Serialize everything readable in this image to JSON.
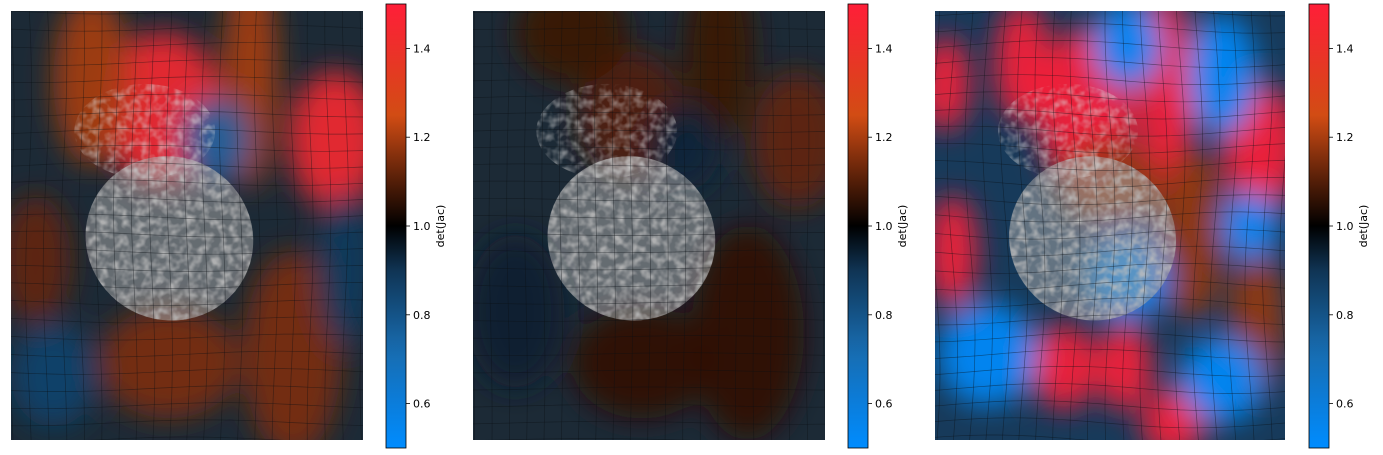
{
  "chart_data": [
    {
      "type": "heatmap",
      "title": "",
      "colorbar": {
        "label": "det(Jac)",
        "range": [
          0.5,
          1.5
        ],
        "ticks": [
          0.6,
          0.8,
          1.0,
          1.2,
          1.4
        ],
        "tick_labels": [
          "0.6",
          "0.8",
          "1.0",
          "1.2",
          "1.4"
        ]
      },
      "deformation": "moderate",
      "blobs": [
        {
          "x": 0.43,
          "y": 0.23,
          "rx": 0.17,
          "ry": 0.18,
          "value": 1.45
        },
        {
          "x": 0.92,
          "y": 0.3,
          "rx": 0.13,
          "ry": 0.16,
          "value": 1.45
        },
        {
          "x": 0.23,
          "y": 0.16,
          "rx": 0.11,
          "ry": 0.2,
          "value": 1.2
        },
        {
          "x": 0.68,
          "y": 0.15,
          "rx": 0.08,
          "ry": 0.26,
          "value": 1.2
        },
        {
          "x": 0.58,
          "y": 0.3,
          "rx": 0.1,
          "ry": 0.1,
          "value": 0.75
        },
        {
          "x": 0.8,
          "y": 0.8,
          "rx": 0.14,
          "ry": 0.24,
          "value": 1.15
        },
        {
          "x": 0.45,
          "y": 0.82,
          "rx": 0.2,
          "ry": 0.13,
          "value": 1.15
        },
        {
          "x": 0.07,
          "y": 0.58,
          "rx": 0.1,
          "ry": 0.15,
          "value": 1.12
        },
        {
          "x": 0.12,
          "y": 0.85,
          "rx": 0.12,
          "ry": 0.12,
          "value": 0.85
        },
        {
          "x": 0.95,
          "y": 0.6,
          "rx": 0.08,
          "ry": 0.18,
          "value": 0.88
        }
      ]
    },
    {
      "type": "heatmap",
      "title": "",
      "colorbar": {
        "label": "det(Jac)",
        "range": [
          0.5,
          1.5
        ],
        "ticks": [
          0.6,
          0.8,
          1.0,
          1.2,
          1.4
        ],
        "tick_labels": [
          "0.6",
          "0.8",
          "1.0",
          "1.2",
          "1.4"
        ]
      },
      "deformation": "weak",
      "blobs": [
        {
          "x": 0.45,
          "y": 0.24,
          "rx": 0.15,
          "ry": 0.15,
          "value": 1.1
        },
        {
          "x": 0.92,
          "y": 0.3,
          "rx": 0.13,
          "ry": 0.16,
          "value": 1.12
        },
        {
          "x": 0.28,
          "y": 0.05,
          "rx": 0.16,
          "ry": 0.12,
          "value": 1.07
        },
        {
          "x": 0.7,
          "y": 0.1,
          "rx": 0.1,
          "ry": 0.2,
          "value": 1.07
        },
        {
          "x": 0.78,
          "y": 0.75,
          "rx": 0.16,
          "ry": 0.25,
          "value": 1.06
        },
        {
          "x": 0.48,
          "y": 0.82,
          "rx": 0.2,
          "ry": 0.13,
          "value": 1.06
        },
        {
          "x": 0.12,
          "y": 0.7,
          "rx": 0.14,
          "ry": 0.18,
          "value": 0.94
        },
        {
          "x": 0.6,
          "y": 0.32,
          "rx": 0.1,
          "ry": 0.1,
          "value": 0.93
        }
      ]
    },
    {
      "type": "heatmap",
      "title": "",
      "colorbar": {
        "label": "det(Jac)",
        "range": [
          0.5,
          1.5
        ],
        "ticks": [
          0.6,
          0.8,
          1.0,
          1.2,
          1.4
        ],
        "tick_labels": [
          "0.6",
          "0.8",
          "1.0",
          "1.2",
          "1.4"
        ]
      },
      "deformation": "strong",
      "blobs": [
        {
          "x": 0.43,
          "y": 0.23,
          "rx": 0.14,
          "ry": 0.19,
          "value": 1.7
        },
        {
          "x": 0.66,
          "y": 0.2,
          "rx": 0.08,
          "ry": 0.24,
          "value": 1.7
        },
        {
          "x": 0.25,
          "y": 0.12,
          "rx": 0.08,
          "ry": 0.14,
          "value": 1.6
        },
        {
          "x": 0.03,
          "y": 0.17,
          "rx": 0.07,
          "ry": 0.11,
          "value": 1.6
        },
        {
          "x": 0.93,
          "y": 0.32,
          "rx": 0.11,
          "ry": 0.15,
          "value": 1.7
        },
        {
          "x": 0.05,
          "y": 0.56,
          "rx": 0.07,
          "ry": 0.13,
          "value": 1.7
        },
        {
          "x": 0.37,
          "y": 0.83,
          "rx": 0.09,
          "ry": 0.1,
          "value": 1.7
        },
        {
          "x": 0.54,
          "y": 0.83,
          "rx": 0.08,
          "ry": 0.1,
          "value": 1.7
        },
        {
          "x": 0.68,
          "y": 0.96,
          "rx": 0.09,
          "ry": 0.08,
          "value": 1.7
        },
        {
          "x": 0.73,
          "y": 0.52,
          "rx": 0.1,
          "ry": 0.2,
          "value": 1.18
        },
        {
          "x": 0.92,
          "y": 0.72,
          "rx": 0.08,
          "ry": 0.18,
          "value": 1.18
        },
        {
          "x": 0.5,
          "y": 0.4,
          "rx": 0.15,
          "ry": 0.1,
          "value": 1.18
        },
        {
          "x": 0.55,
          "y": 0.08,
          "rx": 0.1,
          "ry": 0.1,
          "value": 0.45
        },
        {
          "x": 0.82,
          "y": 0.15,
          "rx": 0.1,
          "ry": 0.14,
          "value": 0.45
        },
        {
          "x": 0.55,
          "y": 0.62,
          "rx": 0.12,
          "ry": 0.1,
          "value": 0.45
        },
        {
          "x": 0.15,
          "y": 0.8,
          "rx": 0.14,
          "ry": 0.12,
          "value": 0.45
        },
        {
          "x": 0.82,
          "y": 0.86,
          "rx": 0.12,
          "ry": 0.1,
          "value": 0.5
        },
        {
          "x": 0.9,
          "y": 0.5,
          "rx": 0.08,
          "ry": 0.08,
          "value": 0.5
        }
      ]
    }
  ]
}
